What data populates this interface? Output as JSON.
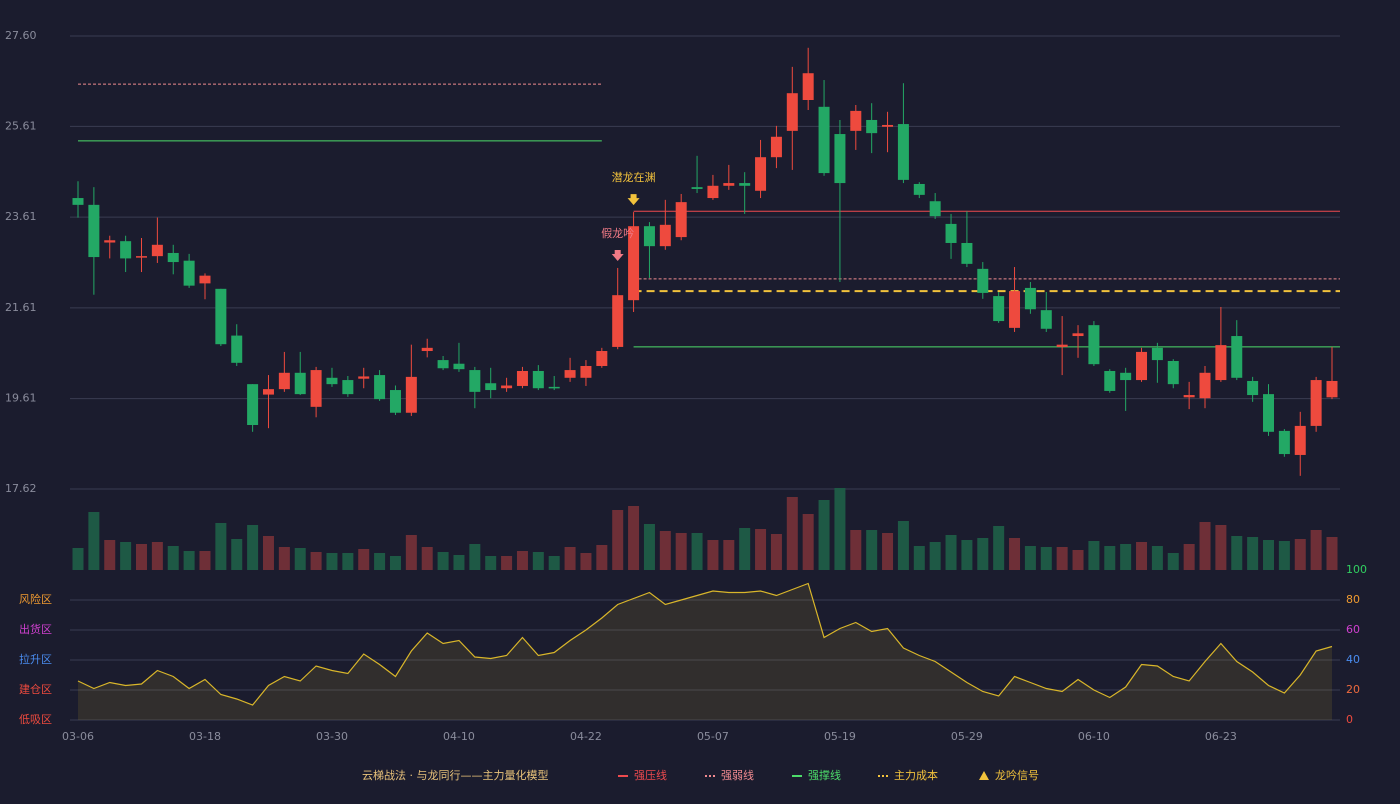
{
  "chart_data": {
    "type": "candlestick",
    "title": "云梯战法 · 与龙同行——主力量化模型",
    "categories": [
      "03-06",
      null,
      null,
      null,
      null,
      null,
      null,
      null,
      "03-18",
      null,
      null,
      null,
      null,
      null,
      null,
      null,
      "03-30",
      null,
      null,
      null,
      null,
      null,
      null,
      null,
      "04-10",
      null,
      null,
      null,
      null,
      null,
      null,
      null,
      "04-22",
      null,
      null,
      null,
      null,
      null,
      null,
      null,
      "05-07",
      null,
      null,
      null,
      null,
      null,
      null,
      null,
      "05-19",
      null,
      null,
      null,
      null,
      null,
      null,
      null,
      "05-29",
      null,
      null,
      null,
      null,
      null,
      null,
      null,
      "06-10",
      null,
      null,
      null,
      null,
      null,
      null,
      null,
      "06-23",
      null,
      null,
      null,
      null,
      null,
      null,
      null
    ],
    "open": [
      24.03,
      23.88,
      23.05,
      23.08,
      22.72,
      22.75,
      22.82,
      22.65,
      22.15,
      22.03,
      21.0,
      19.93,
      19.7,
      19.82,
      20.18,
      19.43,
      20.07,
      20.02,
      20.05,
      20.13,
      19.8,
      19.3,
      20.66,
      20.46,
      20.38,
      20.24,
      19.95,
      19.84,
      19.89,
      20.22,
      19.87,
      20.07,
      20.07,
      20.33,
      20.75,
      21.78,
      23.41,
      22.97,
      23.17,
      24.27,
      24.03,
      24.3,
      24.36,
      24.19,
      24.93,
      25.51,
      26.19,
      26.04,
      25.44,
      25.51,
      25.75,
      25.6,
      25.66,
      24.34,
      23.96,
      23.46,
      23.04,
      22.47,
      21.87,
      21.17,
      22.05,
      21.56,
      20.75,
      20.99,
      21.23,
      20.22,
      20.18,
      20.02,
      20.73,
      20.44,
      19.64,
      19.62,
      20.02,
      20.99,
      20.0,
      19.71,
      18.9,
      18.37,
      19.01,
      19.64
    ],
    "high": [
      24.4,
      24.27,
      23.2,
      23.2,
      23.15,
      23.6,
      23.0,
      22.8,
      22.37,
      22.03,
      21.25,
      19.93,
      20.13,
      20.64,
      20.64,
      20.31,
      20.29,
      20.11,
      20.29,
      20.24,
      19.9,
      20.8,
      20.93,
      20.55,
      20.84,
      20.31,
      20.29,
      20.07,
      20.31,
      20.35,
      20.11,
      20.51,
      20.46,
      20.73,
      22.49,
      23.72,
      23.5,
      23.99,
      24.12,
      24.96,
      24.54,
      24.76,
      24.6,
      25.31,
      25.62,
      26.92,
      27.34,
      26.63,
      25.75,
      26.08,
      26.12,
      25.93,
      26.56,
      24.38,
      24.14,
      23.68,
      23.74,
      22.62,
      21.96,
      22.51,
      22.18,
      21.96,
      21.43,
      21.23,
      21.32,
      20.26,
      20.29,
      20.73,
      20.84,
      20.48,
      19.98,
      20.33,
      21.63,
      21.34,
      20.09,
      19.93,
      18.94,
      19.32,
      20.09,
      20.75
    ],
    "low": [
      23.6,
      21.9,
      22.7,
      22.4,
      22.4,
      22.6,
      22.35,
      22.05,
      21.8,
      20.77,
      20.33,
      18.88,
      18.96,
      19.76,
      19.69,
      19.2,
      19.87,
      19.65,
      19.84,
      19.56,
      19.25,
      19.23,
      20.52,
      20.24,
      20.2,
      19.4,
      19.62,
      19.76,
      19.84,
      19.8,
      19.8,
      19.98,
      19.89,
      20.29,
      20.7,
      21.52,
      22.27,
      22.89,
      23.1,
      24.14,
      23.99,
      24.21,
      23.68,
      24.03,
      24.69,
      24.65,
      25.97,
      24.52,
      22.18,
      25.09,
      25.02,
      25.04,
      24.36,
      24.03,
      23.57,
      22.69,
      22.51,
      21.81,
      21.28,
      21.08,
      21.48,
      21.08,
      20.13,
      20.51,
      20.33,
      19.74,
      19.34,
      19.98,
      19.96,
      19.84,
      19.38,
      19.4,
      19.98,
      20.02,
      19.54,
      18.79,
      18.33,
      17.91,
      18.88,
      19.6
    ],
    "close": [
      23.88,
      22.73,
      23.1,
      22.7,
      22.75,
      23.0,
      22.62,
      22.1,
      22.32,
      20.81,
      20.4,
      19.03,
      19.82,
      20.18,
      19.71,
      20.24,
      19.93,
      19.71,
      20.1,
      19.6,
      19.3,
      20.09,
      20.73,
      20.28,
      20.26,
      19.76,
      19.8,
      19.9,
      20.22,
      19.84,
      19.84,
      20.24,
      20.33,
      20.66,
      21.89,
      23.41,
      22.97,
      23.44,
      23.94,
      24.23,
      24.3,
      24.36,
      24.3,
      24.93,
      25.38,
      26.34,
      26.78,
      24.58,
      24.36,
      25.95,
      25.46,
      25.64,
      24.43,
      24.1,
      23.63,
      23.04,
      22.58,
      21.94,
      21.32,
      21.98,
      21.58,
      21.15,
      20.8,
      21.05,
      20.37,
      19.78,
      20.02,
      20.64,
      20.46,
      19.93,
      19.69,
      20.18,
      20.79,
      20.07,
      19.69,
      18.88,
      18.39,
      19.01,
      20.02,
      20.0
    ],
    "volume": [
      22,
      58,
      30,
      28,
      26,
      28,
      24,
      19,
      19,
      47,
      31,
      45,
      34,
      23,
      22,
      18,
      17,
      17,
      21,
      17,
      14,
      35,
      23,
      18,
      15,
      26,
      14,
      14,
      19,
      18,
      14,
      23,
      17,
      25,
      60,
      64,
      46,
      39,
      37,
      37,
      30,
      30,
      42,
      41,
      36,
      73,
      56,
      70,
      82,
      40,
      40,
      37,
      49,
      24,
      28,
      35,
      30,
      32,
      44,
      32,
      24,
      23,
      23,
      20,
      29,
      24,
      26,
      28,
      24,
      17,
      26,
      48,
      45,
      34,
      33,
      30,
      29,
      31,
      40,
      33
    ],
    "up_color": "#ee4a3e",
    "down_color": "#23a865",
    "volume_up_color": "#6e2f37",
    "volume_down_color": "#1e5945",
    "ylim": [
      17.62,
      27.6
    ],
    "yticks": [
      {
        "value": 27.6,
        "label": "27.60"
      },
      25.61,
      23.61,
      21.61,
      19.61,
      17.62
    ],
    "grid": true,
    "levels": [
      {
        "name": "强压线",
        "color": "#ee4a4e",
        "dashed": false,
        "segments": [
          {
            "from": 35,
            "to": 79,
            "value": 23.74
          }
        ]
      },
      {
        "name": "强弱线",
        "color": "#f08a90",
        "dashed": true,
        "segments": [
          {
            "from": 0,
            "to": 33,
            "value": 26.54
          },
          {
            "from": 35,
            "to": 79,
            "value": 22.25
          }
        ]
      },
      {
        "name": "强撑线",
        "color": "#4cdc6a",
        "dashed": false,
        "segments": [
          {
            "from": 0,
            "to": 33,
            "value": 25.29
          },
          {
            "from": 35,
            "to": 79,
            "value": 20.75
          }
        ]
      },
      {
        "name": "主力成本",
        "color": "#f2c23c",
        "dashed": true,
        "segments": [
          {
            "from": 35,
            "to": 79,
            "value": 21.98
          }
        ]
      }
    ],
    "signal": {
      "name": "龙吟信号",
      "color": "#f2c23c"
    },
    "annotations": [
      {
        "label": "潜龙在渊",
        "index": 35,
        "color": "#f2c23c"
      },
      {
        "label": "假龙吟",
        "index": 34,
        "color": "#f07a86"
      }
    ],
    "indicator": {
      "color": "#d9b62a",
      "values": [
        26,
        21,
        25,
        23,
        24,
        33,
        29,
        21,
        27,
        17,
        14,
        10,
        23,
        29,
        26,
        36,
        33,
        31,
        44,
        37,
        29,
        46,
        58,
        51,
        53,
        42,
        41,
        43,
        55,
        43,
        45,
        53,
        60,
        68,
        77,
        81,
        85,
        77,
        80,
        83,
        86,
        85,
        85,
        86,
        83,
        87,
        91,
        55,
        61,
        65,
        59,
        61,
        48,
        43,
        39,
        32,
        25,
        19,
        16,
        29,
        25,
        21,
        19,
        27,
        20,
        15,
        22,
        37,
        36,
        29,
        26,
        39,
        51,
        39,
        32,
        23,
        18,
        30,
        46,
        49
      ],
      "ylim": [
        0,
        100
      ],
      "yticks": [
        0,
        20,
        40,
        60,
        80,
        100
      ],
      "ytick_colors": [
        "#ee4a3e",
        "#ee6a3e",
        "#4a8cf0",
        "#d040d0",
        "#f09a30",
        "#30d060"
      ],
      "zones": [
        {
          "label": "风险区",
          "value": 80,
          "color": "#f09a30"
        },
        {
          "label": "出货区",
          "value": 60,
          "color": "#d040d0"
        },
        {
          "label": "拉升区",
          "value": 40,
          "color": "#4a8cf0"
        },
        {
          "label": "建仓区",
          "value": 20,
          "color": "#ee4a3e"
        },
        {
          "label": "低吸区",
          "value": 0,
          "color": "#ee4a3e"
        }
      ]
    }
  }
}
